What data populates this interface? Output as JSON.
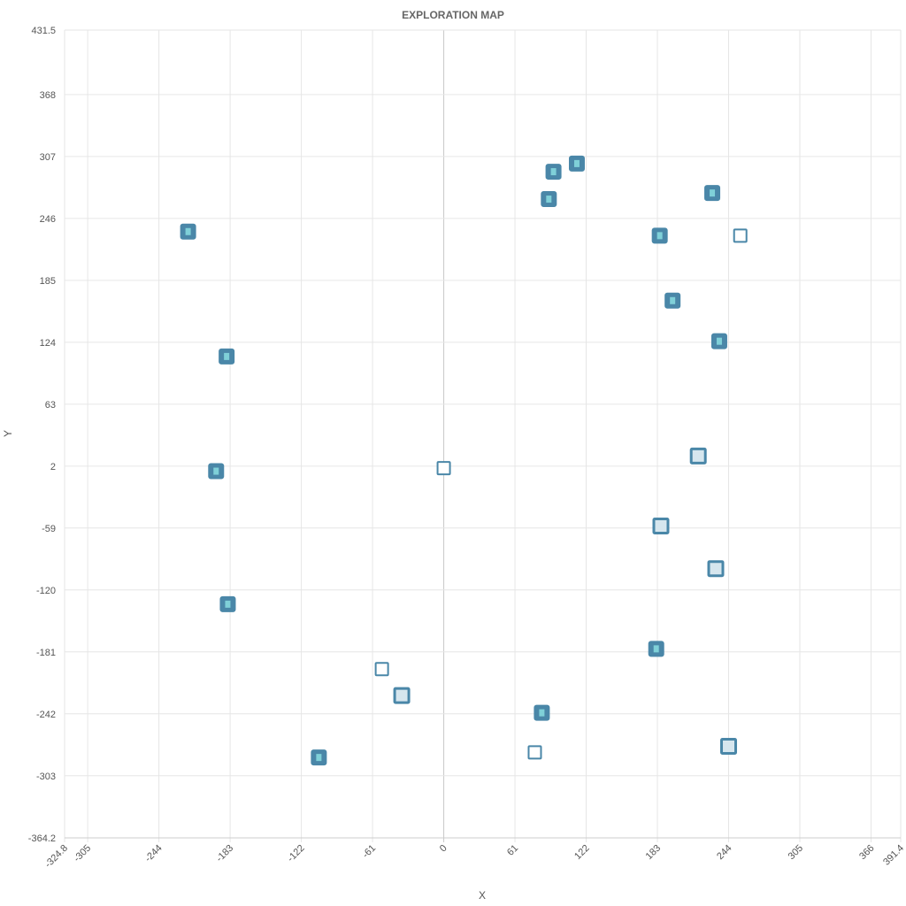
{
  "chart_data": {
    "type": "scatter",
    "title": "EXPLORATION MAP",
    "xlabel": "X",
    "ylabel": "Y",
    "xlim": [
      -324.8,
      391.4
    ],
    "ylim": [
      -364.2,
      431.5
    ],
    "x_ticks": [
      "-324.8",
      "-305",
      "-244",
      "-183",
      "-122",
      "-61",
      "0",
      "61",
      "122",
      "183",
      "244",
      "305",
      "366",
      "391.4"
    ],
    "y_ticks": [
      "431.5",
      "368",
      "307",
      "246",
      "185",
      "124",
      "63",
      "2",
      "-59",
      "-120",
      "-181",
      "-242",
      "-303",
      "-364.2"
    ],
    "grid": true,
    "colors": {
      "marker_stroke": "#4a87a8",
      "marker_fill_visited": "#4a87a8",
      "marker_fill_light": "#d6e6ee",
      "marker_center": "#7fd0d8"
    },
    "series": [
      {
        "points": [
          {
            "x": -219,
            "y": 233,
            "style": "filled"
          },
          {
            "x": -186,
            "y": 110,
            "style": "filled"
          },
          {
            "x": -195,
            "y": -3,
            "style": "filled"
          },
          {
            "x": -185,
            "y": -134,
            "style": "filled"
          },
          {
            "x": -107,
            "y": -285,
            "style": "filled"
          },
          {
            "x": -53,
            "y": -198,
            "style": "outline"
          },
          {
            "x": -36,
            "y": -224,
            "style": "light"
          },
          {
            "x": 0,
            "y": 0,
            "style": "outline"
          },
          {
            "x": 84,
            "y": -241,
            "style": "filled"
          },
          {
            "x": 78,
            "y": -280,
            "style": "outline"
          },
          {
            "x": 94,
            "y": 292,
            "style": "filled"
          },
          {
            "x": 114,
            "y": 300,
            "style": "filled"
          },
          {
            "x": 90,
            "y": 265,
            "style": "filled"
          },
          {
            "x": 185,
            "y": 229,
            "style": "filled"
          },
          {
            "x": 196,
            "y": 165,
            "style": "filled"
          },
          {
            "x": 230,
            "y": 271,
            "style": "filled"
          },
          {
            "x": 254,
            "y": 229,
            "style": "outline"
          },
          {
            "x": 236,
            "y": 125,
            "style": "filled"
          },
          {
            "x": 218,
            "y": 12,
            "style": "light"
          },
          {
            "x": 186,
            "y": -57,
            "style": "light"
          },
          {
            "x": 233,
            "y": -99,
            "style": "light"
          },
          {
            "x": 182,
            "y": -178,
            "style": "filled"
          },
          {
            "x": 244,
            "y": -274,
            "style": "light"
          }
        ]
      }
    ]
  }
}
